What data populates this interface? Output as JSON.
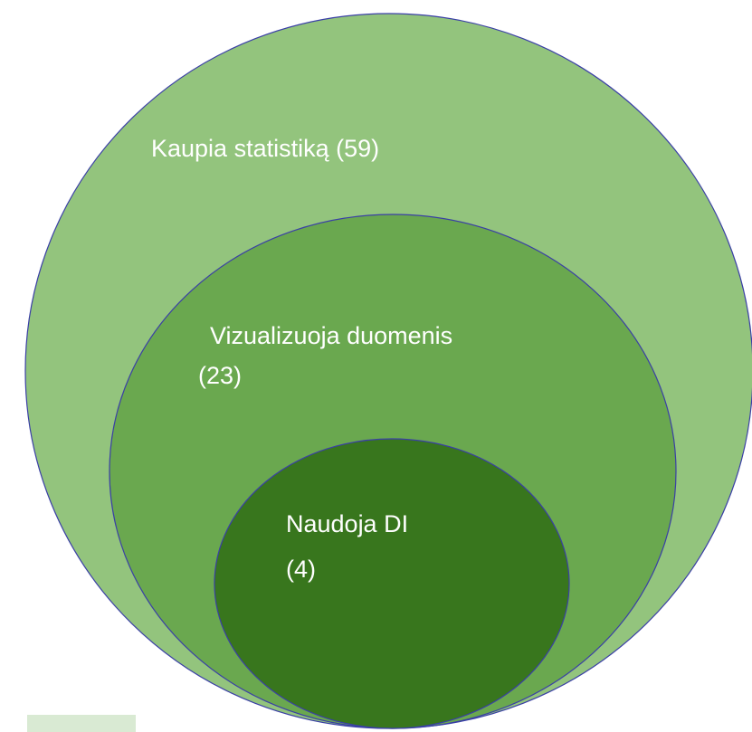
{
  "nodes": [
    {
      "lines": [
        "Kaupia statistiką (59)"
      ]
    },
    {
      "lines": [
        "Vizualizuoja duomenis",
        "(23)"
      ]
    },
    {
      "lines": [
        "Naudoja DI",
        "(4)"
      ]
    }
  ]
}
